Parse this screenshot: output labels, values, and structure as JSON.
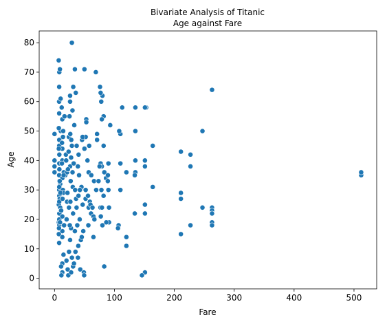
{
  "chart_data": {
    "type": "scatter",
    "title": [
      "Bivariate Analysis of Titanic",
      "Age against Fare"
    ],
    "xlabel": "Fare",
    "ylabel": "Age",
    "xlim": [
      -25.6,
      537.9
    ],
    "ylim": [
      -3.6,
      84.0
    ],
    "xticks": [
      0,
      100,
      200,
      300,
      400,
      500
    ],
    "yticks": [
      0,
      10,
      20,
      30,
      40,
      50,
      60,
      70,
      80
    ],
    "color": "#1f77b4",
    "x": [
      512,
      512,
      263,
      263,
      263,
      263,
      263,
      263,
      247,
      247,
      227,
      227,
      227,
      211,
      211,
      211,
      211,
      164,
      164,
      153,
      151,
      151,
      151,
      151,
      151,
      151,
      146,
      135,
      135,
      135,
      135,
      134,
      134,
      120,
      120,
      120,
      113,
      110,
      110,
      110,
      108,
      107,
      106,
      90,
      90,
      91,
      91,
      83,
      82,
      80,
      78,
      77,
      79,
      93,
      69,
      76,
      50,
      34,
      29,
      7,
      8,
      9,
      7.8,
      26,
      86,
      89,
      82,
      77,
      79,
      71,
      66,
      61,
      57,
      57,
      53,
      52,
      52,
      55,
      59,
      65,
      0,
      0,
      0,
      0,
      7.2,
      7.2,
      7.9,
      7.9,
      7.8,
      7.8,
      8,
      8,
      8,
      8.05,
      8.05,
      8.05,
      8.7,
      9.5,
      9.5,
      10.5,
      13,
      13,
      13,
      13,
      13,
      13,
      13,
      13,
      13,
      13,
      7.9,
      7.9,
      7.2,
      7.2,
      7.7,
      7.8,
      7.9,
      8.1,
      7.2,
      7.5,
      10.5,
      11,
      11.5,
      12,
      12.5,
      14,
      14.5,
      15,
      15.5,
      16,
      18,
      19,
      20,
      21,
      22,
      23,
      24,
      25,
      26,
      26,
      26.5,
      27,
      27.7,
      28,
      29,
      30,
      30.5,
      31,
      31,
      32,
      33,
      34,
      35,
      35.5,
      36,
      37,
      38,
      39,
      39.7,
      40,
      41,
      42,
      43,
      44,
      45,
      46,
      47,
      48,
      49,
      50,
      14.5,
      16.7,
      19.5,
      21,
      23.5,
      24.2,
      26,
      27.5,
      29.1,
      31.3,
      7.75,
      8.66,
      9.2,
      9.8,
      10.2,
      11.1,
      12.3,
      13.4,
      14.1,
      15.2,
      20.2,
      21.6,
      22.4,
      24.1,
      25.5,
      26.3,
      27.7,
      30.1,
      32.5,
      34.4,
      36.8,
      39.1,
      40.2,
      42.4,
      45.5,
      46.9,
      49.5,
      51.9,
      53.1,
      55.9,
      56.5,
      57.9,
      60,
      61.4,
      63.4,
      65,
      66.6,
      69.6,
      71,
      73.5,
      75.2,
      76.7,
      77.3,
      78.3,
      79.2,
      80,
      81.9,
      83.2,
      86.5,
      89.1
    ],
    "values": [
      35,
      36,
      64,
      24,
      23,
      22,
      19,
      18,
      50,
      24,
      42,
      38,
      18,
      43,
      29,
      27,
      15,
      45,
      31,
      58,
      58,
      40,
      38,
      25,
      22,
      2,
      1,
      58,
      50,
      40,
      36,
      35,
      22,
      36,
      14,
      11,
      58,
      49,
      39,
      30,
      50,
      18,
      17,
      39,
      30,
      24,
      19,
      4,
      55,
      62,
      60,
      63,
      54,
      52,
      70,
      65,
      71,
      71,
      80,
      74,
      70,
      71,
      65,
      62,
      34,
      33,
      45,
      39,
      38,
      47,
      33,
      22,
      36,
      24,
      54,
      30,
      48,
      40,
      26,
      21,
      40,
      38,
      36,
      49,
      25,
      19,
      20,
      30,
      45,
      35,
      22,
      28,
      33,
      39,
      42,
      18,
      27,
      32,
      24,
      50,
      5,
      2,
      14,
      16,
      21,
      27,
      34,
      40,
      44,
      54,
      26,
      31,
      15,
      44,
      60,
      56,
      47,
      37,
      51,
      17,
      23,
      4,
      1,
      58,
      46,
      30,
      29,
      8,
      36,
      18,
      35,
      42,
      6,
      26,
      3,
      1,
      48,
      55,
      38,
      60,
      26,
      33,
      2,
      47,
      45,
      57,
      31,
      22,
      4,
      39,
      52,
      16,
      9,
      63,
      27,
      45,
      18,
      38,
      11,
      28,
      35,
      20,
      3,
      13,
      31,
      47,
      25,
      16,
      2,
      44,
      50,
      55,
      40,
      36,
      43,
      9,
      13,
      17,
      7,
      65,
      12,
      33,
      19,
      29,
      61,
      23,
      39,
      27,
      48,
      35,
      20,
      29,
      37,
      24,
      18,
      49,
      41,
      36,
      5,
      30,
      24,
      7,
      42,
      30,
      14,
      48,
      1,
      27,
      53,
      28,
      18,
      45,
      25,
      35,
      24,
      14,
      20,
      30,
      49,
      33,
      38,
      24,
      21,
      30,
      24,
      18,
      28,
      36,
      19,
      35
    ]
  }
}
